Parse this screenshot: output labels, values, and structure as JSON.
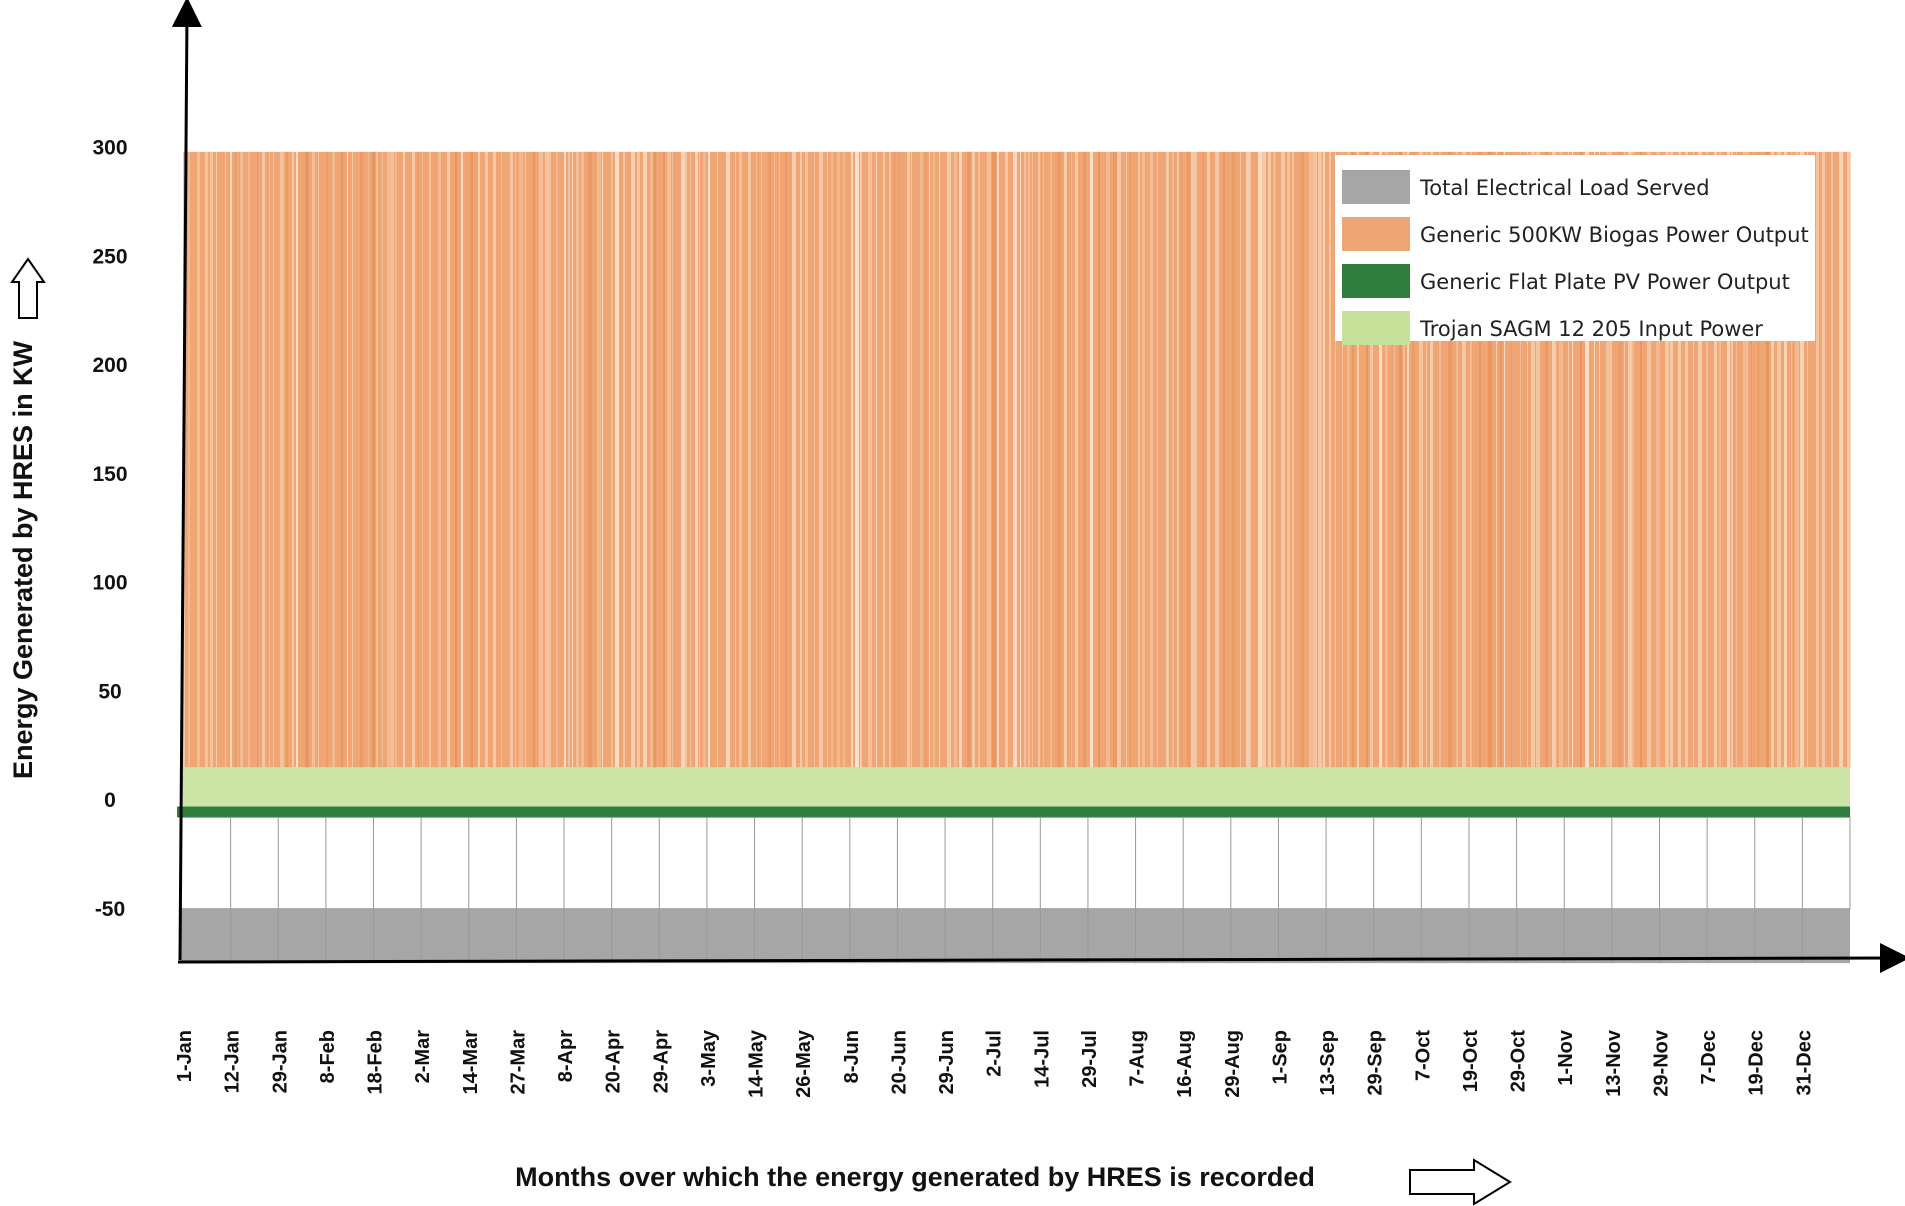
{
  "colors": {
    "load": "#a6a6a6",
    "biogas": "#f0a574",
    "biogas_light": "#f5cfae",
    "pv": "#2e7d3f",
    "battery": "#c6e29a",
    "axis": "#000000",
    "cell_border": "#999999"
  },
  "chart_data": {
    "type": "area",
    "xlabel": "Months over which the energy generated by HRES is recorded",
    "ylabel": "Energy Generated by HRES in KW",
    "ylim": [
      -75,
      310
    ],
    "yticks": [
      300,
      250,
      200,
      150,
      100,
      50,
      0,
      -50
    ],
    "categories": [
      "1-Jan",
      "12-Jan",
      "29-Jan",
      "8-Feb",
      "18-Feb",
      "2-Mar",
      "14-Mar",
      "27-Mar",
      "8-Apr",
      "20-Apr",
      "29-Apr",
      "3-May",
      "14-May",
      "26-May",
      "8-Jun",
      "20-Jun",
      "29-Jun",
      "2-Jul",
      "14-Jul",
      "29-Jul",
      "7-Aug",
      "16-Aug",
      "29-Aug",
      "1-Sep",
      "13-Sep",
      "29-Sep",
      "7-Oct",
      "19-Oct",
      "29-Oct",
      "1-Nov",
      "13-Nov",
      "29-Nov",
      "7-Dec",
      "19-Dec",
      "31-Dec"
    ],
    "legend_position": "top-right",
    "grid": false,
    "series": [
      {
        "name": "Total Electrical Load Served",
        "color_key": "load",
        "band": [
          -75,
          -50
        ]
      },
      {
        "name": "Generic 500KW Biogas Power Output",
        "color_key": "biogas",
        "band": [
          15,
          298
        ]
      },
      {
        "name": "Generic Flat Plate PV Power Output",
        "color_key": "pv",
        "band": [
          -8,
          -3
        ]
      },
      {
        "name": "Trojan SAGM 12 205 Input Power",
        "color_key": "battery",
        "band": [
          -3,
          15
        ]
      }
    ]
  }
}
